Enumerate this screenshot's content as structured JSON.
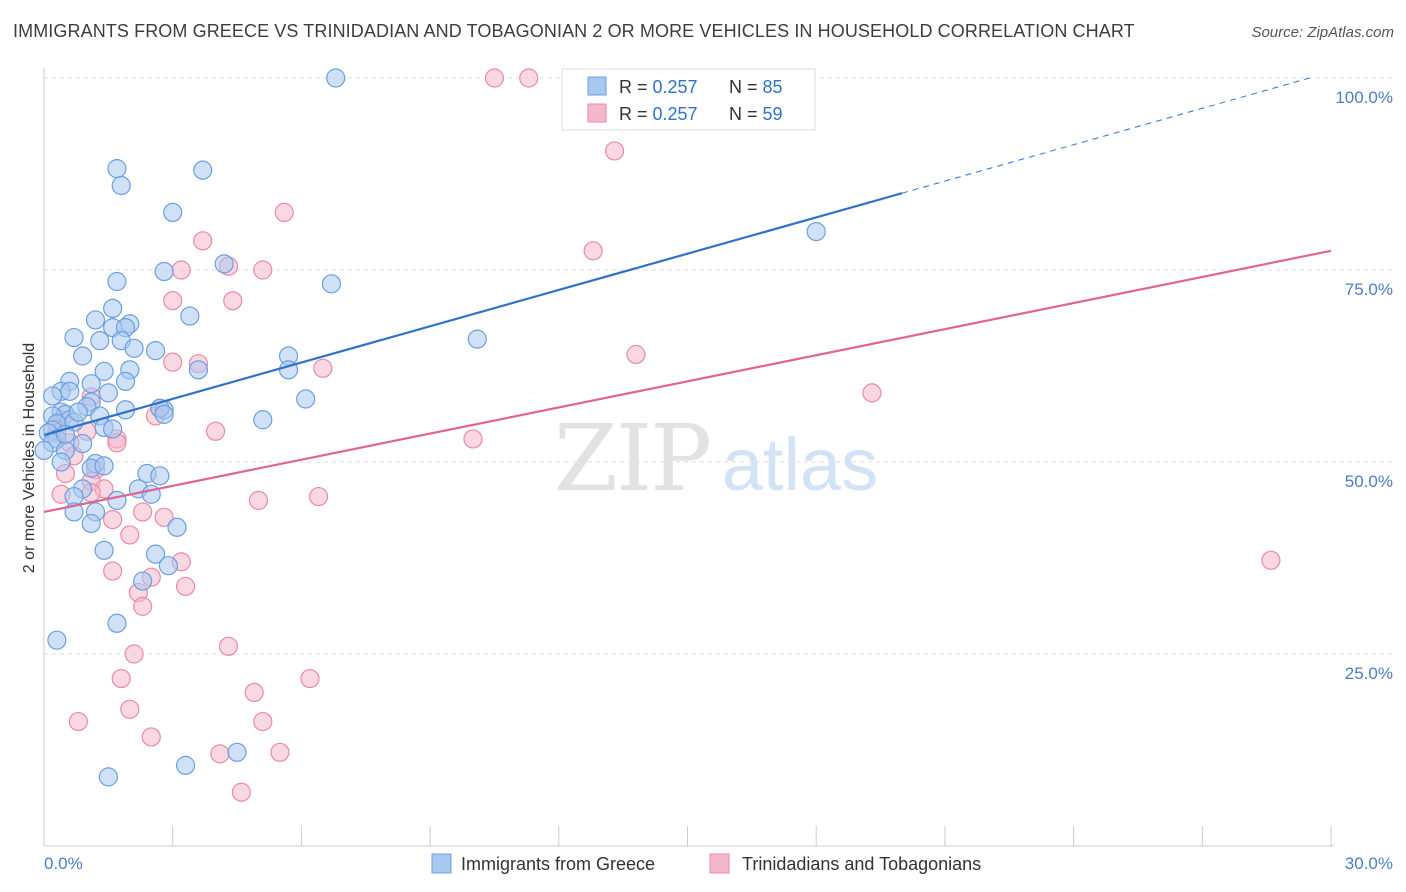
{
  "header": {
    "title": "IMMIGRANTS FROM GREECE VS TRINIDADIAN AND TOBAGONIAN 2 OR MORE VEHICLES IN HOUSEHOLD CORRELATION CHART",
    "source": "Source: ZipAtlas.com"
  },
  "watermark": {
    "zip": "ZIP",
    "atlas": "atlas"
  },
  "colors": {
    "blue_fill": "#a9c8f0",
    "blue_stroke": "#6a9fe0",
    "blue_line": "#2f73c9",
    "pink_fill": "#f5b8cb",
    "pink_stroke": "#e98aa8",
    "pink_line": "#e0648f",
    "tick_text": "#4a7dc8",
    "grid": "#dddddd"
  },
  "chart_data": {
    "type": "scatter",
    "ylabel": "2 or more Vehicles in Household",
    "xlim": [
      0,
      30
    ],
    "ylim": [
      0,
      100
    ],
    "x_tick_labels": [
      "0.0%",
      "30.0%"
    ],
    "y_ticks": [
      25,
      50,
      75,
      100
    ],
    "y_tick_labels": [
      "25.0%",
      "50.0%",
      "75.0%",
      "100.0%"
    ],
    "grid": true,
    "legend_top": [
      {
        "r_label": "R = ",
        "r_value": "0.257",
        "n_label": "N = ",
        "n_value": "85"
      },
      {
        "r_label": "R = ",
        "r_value": "0.257",
        "n_label": "N = ",
        "n_value": "59"
      }
    ],
    "series": [
      {
        "name": "Immigrants from Greece",
        "color": "#a9c8f0",
        "trend": {
          "x": [
            0,
            20
          ],
          "y": [
            53.5,
            85.0
          ],
          "dashed_to": [
            29.5,
            100
          ]
        },
        "points": [
          [
            6.8,
            100
          ],
          [
            1.7,
            88.2
          ],
          [
            1.8,
            86.0
          ],
          [
            3.7,
            88
          ],
          [
            3.0,
            82.5
          ],
          [
            18.0,
            80.0
          ],
          [
            4.2,
            75.8
          ],
          [
            1.7,
            73.5
          ],
          [
            2.8,
            74.8
          ],
          [
            6.7,
            73.2
          ],
          [
            3.4,
            69.0
          ],
          [
            1.6,
            70.0
          ],
          [
            1.2,
            68.5
          ],
          [
            2.0,
            68.0
          ],
          [
            1.6,
            67.5
          ],
          [
            1.9,
            67.5
          ],
          [
            0.7,
            66.2
          ],
          [
            1.8,
            65.8
          ],
          [
            1.3,
            65.8
          ],
          [
            2.1,
            64.8
          ],
          [
            2.6,
            64.5
          ],
          [
            0.9,
            63.8
          ],
          [
            5.7,
            63.8
          ],
          [
            2.0,
            62.0
          ],
          [
            3.6,
            62.0
          ],
          [
            5.7,
            62.0
          ],
          [
            1.4,
            61.8
          ],
          [
            0.6,
            60.5
          ],
          [
            1.1,
            60.2
          ],
          [
            1.9,
            60.5
          ],
          [
            0.4,
            59.2
          ],
          [
            0.6,
            59.2
          ],
          [
            1.5,
            59.0
          ],
          [
            6.1,
            58.2
          ],
          [
            1.1,
            57.8
          ],
          [
            1.0,
            57.2
          ],
          [
            1.9,
            56.8
          ],
          [
            2.8,
            56.8
          ],
          [
            2.7,
            57.0
          ],
          [
            0.4,
            56.5
          ],
          [
            0.5,
            56.2
          ],
          [
            0.2,
            56.0
          ],
          [
            1.3,
            56.0
          ],
          [
            0.6,
            55.5
          ],
          [
            0.3,
            55.0
          ],
          [
            0.7,
            55.2
          ],
          [
            1.4,
            54.5
          ],
          [
            5.1,
            55.5
          ],
          [
            0.2,
            54.2
          ],
          [
            0.1,
            53.8
          ],
          [
            0.3,
            53.0
          ],
          [
            0.2,
            52.5
          ],
          [
            0.5,
            51.5
          ],
          [
            0.0,
            51.5
          ],
          [
            2.4,
            48.5
          ],
          [
            1.2,
            49.8
          ],
          [
            1.1,
            49.2
          ],
          [
            2.7,
            48.2
          ],
          [
            1.4,
            49.5
          ],
          [
            2.2,
            46.5
          ],
          [
            0.9,
            46.5
          ],
          [
            0.7,
            45.5
          ],
          [
            1.7,
            45.0
          ],
          [
            2.5,
            45.8
          ],
          [
            0.7,
            43.5
          ],
          [
            1.2,
            43.5
          ],
          [
            1.1,
            42.0
          ],
          [
            3.1,
            41.5
          ],
          [
            1.4,
            38.5
          ],
          [
            2.6,
            38.0
          ],
          [
            2.9,
            36.5
          ],
          [
            2.3,
            34.5
          ],
          [
            1.7,
            29.0
          ],
          [
            0.3,
            26.8
          ],
          [
            4.5,
            12.2
          ],
          [
            3.3,
            10.5
          ],
          [
            1.5,
            9.0
          ],
          [
            0.4,
            50.0
          ],
          [
            10.1,
            66.0
          ],
          [
            0.8,
            56.5
          ],
          [
            2.8,
            56.2
          ],
          [
            0.5,
            53.6
          ],
          [
            1.6,
            54.3
          ],
          [
            0.2,
            58.6
          ],
          [
            0.9,
            52.4
          ]
        ]
      },
      {
        "name": "Trinidadians and Tobagonians",
        "color": "#f5b8cb",
        "trend": {
          "x": [
            0,
            30
          ],
          "y": [
            43.5,
            77.5
          ]
        },
        "points": [
          [
            10.5,
            100
          ],
          [
            11.3,
            100
          ],
          [
            13.3,
            90.5
          ],
          [
            5.6,
            82.5
          ],
          [
            3.7,
            78.8
          ],
          [
            12.8,
            77.5
          ],
          [
            4.3,
            75.5
          ],
          [
            5.1,
            75.0
          ],
          [
            3.2,
            75.0
          ],
          [
            3.0,
            71.0
          ],
          [
            4.4,
            71.0
          ],
          [
            13.8,
            64.0
          ],
          [
            3.0,
            63.0
          ],
          [
            3.6,
            62.8
          ],
          [
            6.5,
            62.2
          ],
          [
            19.3,
            59.0
          ],
          [
            1.1,
            58.5
          ],
          [
            2.7,
            57.0
          ],
          [
            2.6,
            56.0
          ],
          [
            0.4,
            55.5
          ],
          [
            1.0,
            54.0
          ],
          [
            4.0,
            54.0
          ],
          [
            0.3,
            53.8
          ],
          [
            1.7,
            53.0
          ],
          [
            10.0,
            53.0
          ],
          [
            0.6,
            52.5
          ],
          [
            1.7,
            52.5
          ],
          [
            0.7,
            50.8
          ],
          [
            1.2,
            49.0
          ],
          [
            0.5,
            48.5
          ],
          [
            1.1,
            47.5
          ],
          [
            1.4,
            46.5
          ],
          [
            1.1,
            46.0
          ],
          [
            0.4,
            45.8
          ],
          [
            6.4,
            45.5
          ],
          [
            5.0,
            45.0
          ],
          [
            2.3,
            43.5
          ],
          [
            2.8,
            42.8
          ],
          [
            1.6,
            42.5
          ],
          [
            2.0,
            40.5
          ],
          [
            3.2,
            37.0
          ],
          [
            28.6,
            37.2
          ],
          [
            2.5,
            35.0
          ],
          [
            1.6,
            35.8
          ],
          [
            3.3,
            33.8
          ],
          [
            2.2,
            33.0
          ],
          [
            2.3,
            31.2
          ],
          [
            4.3,
            26.0
          ],
          [
            2.1,
            25.0
          ],
          [
            6.2,
            21.8
          ],
          [
            1.8,
            21.8
          ],
          [
            4.9,
            20.0
          ],
          [
            2.0,
            17.8
          ],
          [
            0.8,
            16.2
          ],
          [
            5.1,
            16.2
          ],
          [
            2.5,
            14.2
          ],
          [
            4.1,
            12.0
          ],
          [
            5.5,
            12.2
          ],
          [
            4.6,
            7.0
          ]
        ]
      }
    ]
  }
}
